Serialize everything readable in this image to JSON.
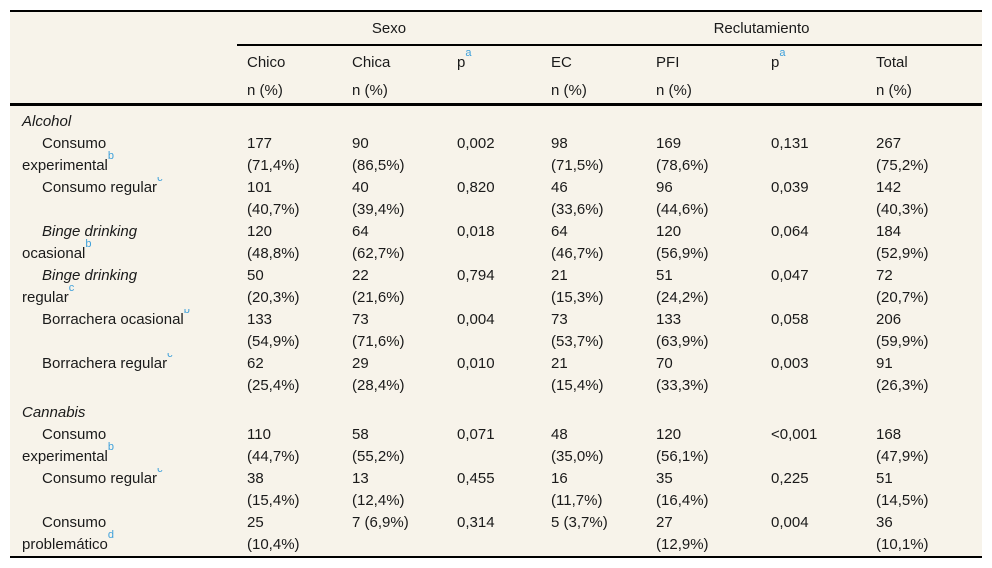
{
  "colors": {
    "table_background": "#f7f3ea",
    "text": "#1a1a1a",
    "rule": "#000000",
    "footnote_link_blue": "#3fa0da"
  },
  "table": {
    "groups": [
      {
        "label": "Sexo",
        "span": 3
      },
      {
        "label": "Reclutamiento",
        "span": 4
      }
    ],
    "columns": [
      {
        "label": "Chico",
        "sup": "",
        "sub": "n (%)"
      },
      {
        "label": "Chica",
        "sup": "",
        "sub": "n (%)"
      },
      {
        "label": "p",
        "sup": "a",
        "sub": ""
      },
      {
        "label": "EC",
        "sup": "",
        "sub": "n (%)"
      },
      {
        "label": "PFI",
        "sup": "",
        "sub": "n (%)"
      },
      {
        "label": "p",
        "sup": "a",
        "sub": ""
      },
      {
        "label": "Total",
        "sup": "",
        "sub": "n (%)"
      }
    ],
    "rows": [
      {
        "kind": "section",
        "lines": [
          {
            "text": "Alcohol",
            "italic": true,
            "indent": false,
            "sup": ""
          }
        ],
        "cells": [
          "",
          "",
          "",
          "",
          "",
          "",
          ""
        ]
      },
      {
        "kind": "data",
        "lines": [
          {
            "text": "Consumo",
            "italic": false,
            "indent": true,
            "sup": ""
          },
          {
            "text": "experimental",
            "italic": false,
            "indent": false,
            "sup": "b"
          }
        ],
        "cells": [
          "177\n(71,4%)",
          "90\n(86,5%)",
          "0,002",
          "98\n(71,5%)",
          "169\n(78,6%)",
          "0,131",
          "267\n(75,2%)"
        ]
      },
      {
        "kind": "data",
        "lines": [
          {
            "text": "Consumo regular",
            "italic": false,
            "indent": true,
            "sup": "c"
          }
        ],
        "cells": [
          "101\n(40,7%)",
          "40\n(39,4%)",
          "0,820",
          "46\n(33,6%)",
          "96\n(44,6%)",
          "0,039",
          "142\n(40,3%)"
        ]
      },
      {
        "kind": "data",
        "lines": [
          {
            "text": "Binge drinking",
            "italic": true,
            "indent": true,
            "sup": ""
          },
          {
            "text": "ocasional",
            "italic": false,
            "indent": false,
            "sup": "b"
          }
        ],
        "cells": [
          "120\n(48,8%)",
          "64\n(62,7%)",
          "0,018",
          "64\n(46,7%)",
          "120\n(56,9%)",
          "0,064",
          "184\n(52,9%)"
        ]
      },
      {
        "kind": "data",
        "lines": [
          {
            "text": "Binge drinking",
            "italic": true,
            "indent": true,
            "sup": ""
          },
          {
            "text": "regular",
            "italic": false,
            "indent": false,
            "sup": "c"
          }
        ],
        "cells": [
          "50\n(20,3%)",
          "22\n(21,6%)",
          "0,794",
          "21\n(15,3%)",
          "51\n(24,2%)",
          "0,047",
          "72\n(20,7%)"
        ]
      },
      {
        "kind": "data",
        "lines": [
          {
            "text": "Borrachera ocasional",
            "italic": false,
            "indent": true,
            "sup": "b"
          }
        ],
        "cells": [
          "133\n(54,9%)",
          "73\n(71,6%)",
          "0,004",
          "73\n(53,7%)",
          "133\n(63,9%)",
          "0,058",
          "206\n(59,9%)"
        ]
      },
      {
        "kind": "data",
        "lines": [
          {
            "text": "Borrachera regular",
            "italic": false,
            "indent": true,
            "sup": "c"
          }
        ],
        "cells": [
          "62\n(25,4%)",
          "29\n(28,4%)",
          "0,010",
          "21\n(15,4%)",
          "70\n(33,3%)",
          "0,003",
          "91\n(26,3%)"
        ]
      },
      {
        "kind": "section",
        "lines": [
          {
            "text": "Cannabis",
            "italic": true,
            "indent": false,
            "sup": ""
          }
        ],
        "cells": [
          "",
          "",
          "",
          "",
          "",
          "",
          ""
        ]
      },
      {
        "kind": "data",
        "lines": [
          {
            "text": "Consumo",
            "italic": false,
            "indent": true,
            "sup": ""
          },
          {
            "text": "experimental",
            "italic": false,
            "indent": false,
            "sup": "b"
          }
        ],
        "cells": [
          "110\n(44,7%)",
          "58\n(55,2%)",
          "0,071",
          "48\n(35,0%)",
          "120\n(56,1%)",
          "<0,001",
          "168\n(47,9%)"
        ]
      },
      {
        "kind": "data",
        "lines": [
          {
            "text": "Consumo regular",
            "italic": false,
            "indent": true,
            "sup": "c"
          }
        ],
        "cells": [
          "38\n(15,4%)",
          "13\n(12,4%)",
          "0,455",
          "16\n(11,7%)",
          "35\n(16,4%)",
          "0,225",
          "51\n(14,5%)"
        ]
      },
      {
        "kind": "data",
        "lines": [
          {
            "text": "Consumo",
            "italic": false,
            "indent": true,
            "sup": ""
          },
          {
            "text": "problemático",
            "italic": false,
            "indent": false,
            "sup": "d"
          }
        ],
        "cells": [
          "25\n(10,4%)",
          "7 (6,9%)",
          "0,314",
          "5 (3,7%)",
          "27\n(12,9%)",
          "0,004",
          "36\n(10,1%)"
        ]
      }
    ]
  }
}
